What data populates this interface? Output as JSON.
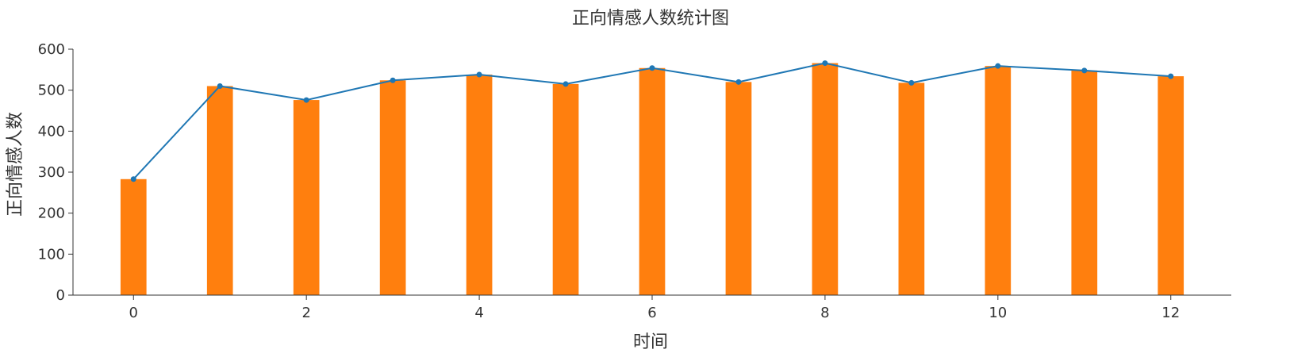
{
  "chart_data": {
    "type": "bar",
    "title": "正向情感人数统计图",
    "xlabel": "时间",
    "ylabel": "正向情感人数",
    "x": [
      0,
      1,
      2,
      3,
      4,
      5,
      6,
      7,
      8,
      9,
      10,
      11,
      12
    ],
    "xlim": [
      -0.7,
      12.7
    ],
    "ylim": [
      0,
      600
    ],
    "xticks": [
      0,
      2,
      4,
      6,
      8,
      10,
      12
    ],
    "yticks": [
      0,
      100,
      200,
      300,
      400,
      500,
      600
    ],
    "grid": false,
    "legend": "none",
    "series": [
      {
        "kind": "bar",
        "color": "#ff7f0e",
        "values": [
          283,
          510,
          476,
          524,
          538,
          515,
          554,
          520,
          566,
          518,
          559,
          548,
          534
        ]
      },
      {
        "kind": "line",
        "color": "#1f77b4",
        "values": [
          283,
          510,
          476,
          524,
          538,
          515,
          554,
          520,
          566,
          518,
          559,
          548,
          534
        ]
      }
    ]
  }
}
